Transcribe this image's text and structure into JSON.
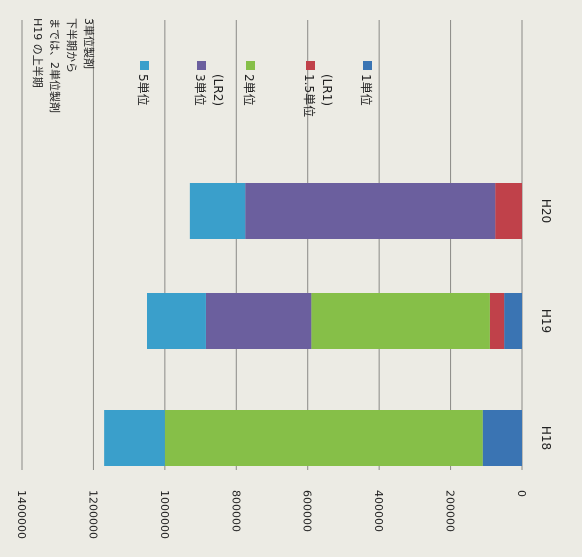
{
  "chart_data": {
    "type": "bar",
    "orientation": "horizontal-stacked",
    "rotation": "page rotated 90 degrees clockwise",
    "categories": [
      "H18",
      "H19",
      "H20"
    ],
    "ylim": [
      0,
      1400000
    ],
    "y_ticks": [
      "0",
      "200000",
      "400000",
      "600000",
      "800000",
      "1000000",
      "1200000",
      "1400000"
    ],
    "grid": true,
    "series": [
      {
        "name": "1単位",
        "color": "#3a74b3",
        "values": [
          110000,
          50000,
          0
        ]
      },
      {
        "name": "1.5単位\n(LR1)",
        "color": "#c0414a",
        "values": [
          0,
          40000,
          75000
        ]
      },
      {
        "name": "2単位",
        "color": "#86bf48",
        "values": [
          890000,
          500000,
          0
        ]
      },
      {
        "name": "3単位\n(LR2)",
        "color": "#6b5f9e",
        "values": [
          0,
          295000,
          700000
        ]
      },
      {
        "name": "5単位",
        "color": "#3a9fcb",
        "values": [
          170000,
          165000,
          155000
        ]
      }
    ],
    "annotation": "H19 の上半期\nまでは、2単位製剤\n下半期から\n3単位製剤"
  }
}
